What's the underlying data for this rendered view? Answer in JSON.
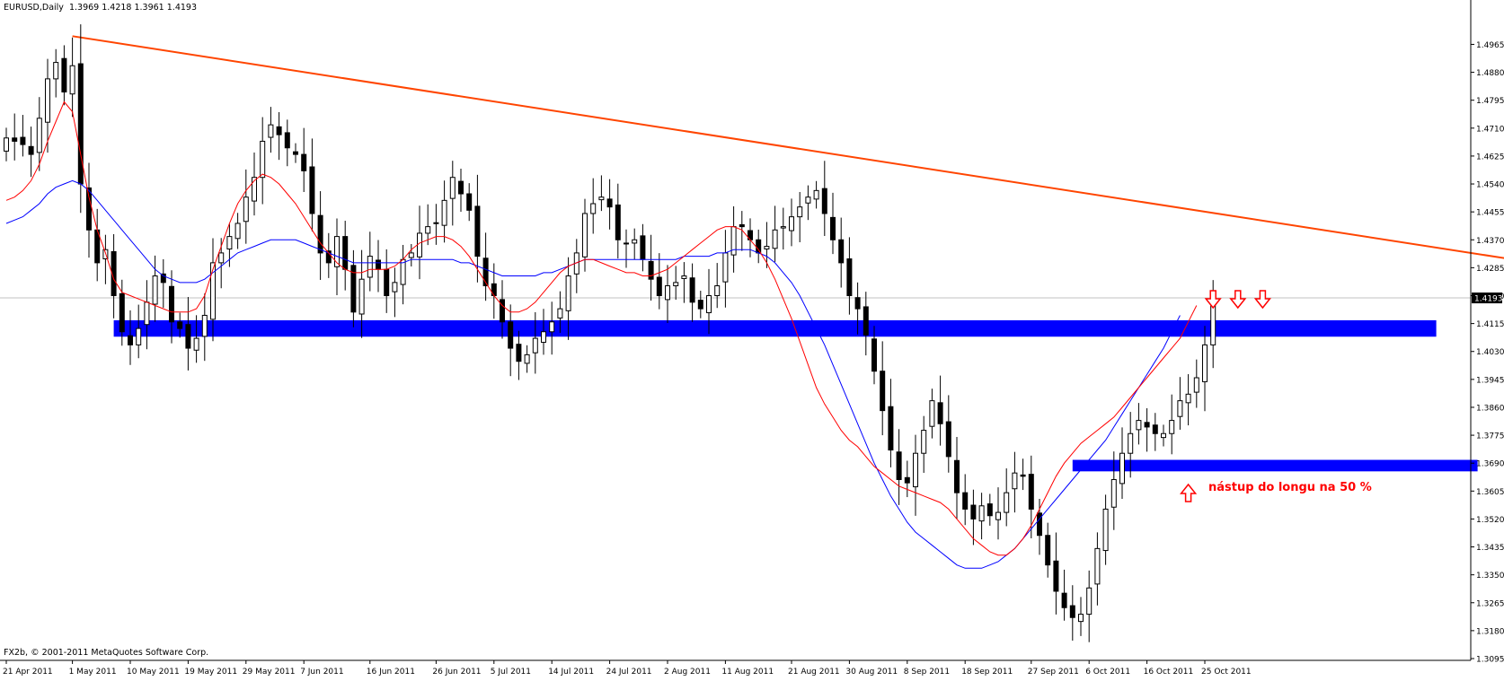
{
  "header": {
    "symbol": "EURUSD,Daily",
    "ohlc": "1.3969 1.4218 1.3961 1.4193"
  },
  "footer": {
    "copyright": "FX2b, © 2001-2011 MetaQuotes Software Corp."
  },
  "annotation": {
    "text": "nástup do longu na 50 %"
  },
  "colors": {
    "background": "#ffffff",
    "axis": "#000000",
    "candle": "#000000",
    "ma_fast": "#ff0000",
    "ma_slow": "#0000ff",
    "trendline": "#ff4500",
    "zone": "#0000ff",
    "arrow": "#ff0000",
    "price_line": "#c0c0c0"
  },
  "chart_data": {
    "type": "candlestick",
    "title": "EURUSD,Daily",
    "ylim": [
      1.3095,
      1.504
    ],
    "y_ticks": [
      "1.4965",
      "1.4880",
      "1.4795",
      "1.4710",
      "1.4625",
      "1.4540",
      "1.4455",
      "1.4370",
      "1.4285",
      "1.4200",
      "1.4115",
      "1.4030",
      "1.3945",
      "1.3860",
      "1.3775",
      "1.3690",
      "1.3605",
      "1.3520",
      "1.3435",
      "1.3350",
      "1.3265",
      "1.3180",
      "1.3095"
    ],
    "x_ticks": [
      {
        "index": 0,
        "label": "21 Apr 2011"
      },
      {
        "index": 8,
        "label": "1 May 2011"
      },
      {
        "index": 15,
        "label": "10 May 2011"
      },
      {
        "index": 22,
        "label": "19 May 2011"
      },
      {
        "index": 29,
        "label": "29 May 2011"
      },
      {
        "index": 36,
        "label": "7 Jun 2011"
      },
      {
        "index": 44,
        "label": "16 Jun 2011"
      },
      {
        "index": 52,
        "label": "26 Jun 2011"
      },
      {
        "index": 59,
        "label": "5 Jul 2011"
      },
      {
        "index": 66,
        "label": "14 Jul 2011"
      },
      {
        "index": 73,
        "label": "24 Jul 2011"
      },
      {
        "index": 80,
        "label": "2 Aug 2011"
      },
      {
        "index": 87,
        "label": "11 Aug 2011"
      },
      {
        "index": 95,
        "label": "21 Aug 2011"
      },
      {
        "index": 102,
        "label": "30 Aug 2011"
      },
      {
        "index": 109,
        "label": "8 Sep 2011"
      },
      {
        "index": 116,
        "label": "18 Sep 2011"
      },
      {
        "index": 124,
        "label": "27 Sep 2011"
      },
      {
        "index": 131,
        "label": "6 Oct 2011"
      },
      {
        "index": 138,
        "label": "16 Oct 2011"
      },
      {
        "index": 145,
        "label": "25 Oct 2011"
      }
    ],
    "current_price": {
      "value": 1.4193,
      "label": "1.4193"
    },
    "closes": [
      1.468,
      1.467,
      1.466,
      1.463,
      1.474,
      1.486,
      1.491,
      1.482,
      1.49,
      1.454,
      1.44,
      1.43,
      1.434,
      1.42,
      1.409,
      1.405,
      1.41,
      1.418,
      1.426,
      1.424,
      1.412,
      1.41,
      1.404,
      1.407,
      1.414,
      1.43,
      1.433,
      1.438,
      1.442,
      1.45,
      1.456,
      1.467,
      1.472,
      1.469,
      1.465,
      1.463,
      1.458,
      1.445,
      1.433,
      1.43,
      1.438,
      1.428,
      1.415,
      1.425,
      1.432,
      1.428,
      1.42,
      1.424,
      1.431,
      1.433,
      1.439,
      1.441,
      1.442,
      1.449,
      1.456,
      1.451,
      1.446,
      1.432,
      1.423,
      1.42,
      1.412,
      1.404,
      1.4,
      1.402,
      1.407,
      1.409,
      1.412,
      1.416,
      1.426,
      1.433,
      1.445,
      1.448,
      1.45,
      1.447,
      1.437,
      1.436,
      1.437,
      1.431,
      1.425,
      1.42,
      1.423,
      1.424,
      1.426,
      1.418,
      1.416,
      1.42,
      1.423,
      1.433,
      1.441,
      1.441,
      1.437,
      1.433,
      1.435,
      1.44,
      1.441,
      1.444,
      1.447,
      1.45,
      1.452,
      1.445,
      1.437,
      1.43,
      1.42,
      1.416,
      1.408,
      1.397,
      1.385,
      1.373,
      1.364,
      1.363,
      1.372,
      1.379,
      1.388,
      1.381,
      1.371,
      1.36,
      1.355,
      1.352,
      1.356,
      1.353,
      1.354,
      1.36,
      1.366,
      1.365,
      1.355,
      1.347,
      1.338,
      1.33,
      1.325,
      1.322,
      1.323,
      1.331,
      1.343,
      1.355,
      1.364,
      1.372,
      1.378,
      1.382,
      1.38,
      1.378,
      1.378,
      1.382,
      1.388,
      1.39,
      1.395,
      1.405,
      1.4193
    ],
    "ma_fast": [
      1.449,
      1.45,
      1.452,
      1.455,
      1.46,
      1.467,
      1.473,
      1.479,
      1.476,
      1.463,
      1.45,
      1.44,
      1.433,
      1.425,
      1.421,
      1.42,
      1.419,
      1.418,
      1.417,
      1.416,
      1.415,
      1.415,
      1.415,
      1.416,
      1.42,
      1.428,
      1.435,
      1.442,
      1.448,
      1.452,
      1.455,
      1.457,
      1.456,
      1.454,
      1.451,
      1.448,
      1.444,
      1.44,
      1.436,
      1.433,
      1.43,
      1.428,
      1.427,
      1.427,
      1.428,
      1.428,
      1.428,
      1.429,
      1.431,
      1.434,
      1.436,
      1.437,
      1.438,
      1.438,
      1.437,
      1.435,
      1.432,
      1.428,
      1.424,
      1.42,
      1.417,
      1.415,
      1.415,
      1.416,
      1.418,
      1.421,
      1.424,
      1.427,
      1.429,
      1.43,
      1.431,
      1.431,
      1.43,
      1.429,
      1.428,
      1.427,
      1.427,
      1.426,
      1.426,
      1.427,
      1.428,
      1.43,
      1.432,
      1.434,
      1.436,
      1.438,
      1.44,
      1.441,
      1.441,
      1.44,
      1.437,
      1.434,
      1.43,
      1.425,
      1.419,
      1.413,
      1.406,
      1.399,
      1.392,
      1.387,
      1.383,
      1.379,
      1.376,
      1.374,
      1.371,
      1.368,
      1.366,
      1.364,
      1.362,
      1.361,
      1.36,
      1.359,
      1.358,
      1.357,
      1.355,
      1.352,
      1.349,
      1.346,
      1.344,
      1.342,
      1.341,
      1.341,
      1.343,
      1.346,
      1.35,
      1.355,
      1.36,
      1.365,
      1.369,
      1.372,
      1.375,
      1.377,
      1.379,
      1.381,
      1.383,
      1.386,
      1.389,
      1.392,
      1.395,
      1.398,
      1.401,
      1.404,
      1.407,
      1.412,
      1.417
    ],
    "ma_slow": [
      1.442,
      1.443,
      1.444,
      1.446,
      1.448,
      1.451,
      1.453,
      1.454,
      1.455,
      1.454,
      1.452,
      1.449,
      1.446,
      1.443,
      1.44,
      1.437,
      1.434,
      1.431,
      1.428,
      1.426,
      1.425,
      1.424,
      1.424,
      1.424,
      1.425,
      1.427,
      1.429,
      1.431,
      1.433,
      1.434,
      1.435,
      1.436,
      1.437,
      1.437,
      1.437,
      1.437,
      1.436,
      1.435,
      1.434,
      1.433,
      1.432,
      1.431,
      1.43,
      1.43,
      1.43,
      1.43,
      1.43,
      1.43,
      1.43,
      1.431,
      1.431,
      1.431,
      1.431,
      1.431,
      1.431,
      1.43,
      1.43,
      1.429,
      1.428,
      1.427,
      1.426,
      1.426,
      1.426,
      1.426,
      1.426,
      1.427,
      1.427,
      1.428,
      1.429,
      1.43,
      1.431,
      1.431,
      1.431,
      1.431,
      1.431,
      1.431,
      1.431,
      1.431,
      1.431,
      1.431,
      1.431,
      1.431,
      1.432,
      1.432,
      1.432,
      1.432,
      1.433,
      1.433,
      1.434,
      1.434,
      1.434,
      1.433,
      1.432,
      1.43,
      1.427,
      1.424,
      1.42,
      1.415,
      1.41,
      1.405,
      1.399,
      1.393,
      1.387,
      1.381,
      1.375,
      1.369,
      1.364,
      1.359,
      1.355,
      1.351,
      1.348,
      1.346,
      1.344,
      1.342,
      1.34,
      1.338,
      1.337,
      1.337,
      1.337,
      1.338,
      1.339,
      1.341,
      1.343,
      1.346,
      1.349,
      1.352,
      1.355,
      1.358,
      1.361,
      1.364,
      1.367,
      1.37,
      1.373,
      1.376,
      1.38,
      1.384,
      1.388,
      1.392,
      1.396,
      1.4,
      1.404,
      1.409,
      1.414
    ],
    "trendline": {
      "from": {
        "index": 8,
        "price": 1.499
      },
      "to": {
        "index": 190,
        "price": 1.428
      }
    },
    "zones": [
      {
        "from_index": 13,
        "to_index": 173,
        "top": 1.4125,
        "bottom": 1.4075
      },
      {
        "from_index": 129,
        "to_index": 178,
        "top": 1.37,
        "bottom": 1.3665
      }
    ],
    "arrows": [
      {
        "index": 146,
        "price": 1.4215,
        "direction": "down"
      },
      {
        "index": 149,
        "price": 1.4215,
        "direction": "down"
      },
      {
        "index": 152,
        "price": 1.4215,
        "direction": "down"
      },
      {
        "index": 143,
        "price": 1.3625,
        "direction": "up"
      }
    ],
    "annotation_position": {
      "index": 145,
      "price": 1.361
    }
  }
}
